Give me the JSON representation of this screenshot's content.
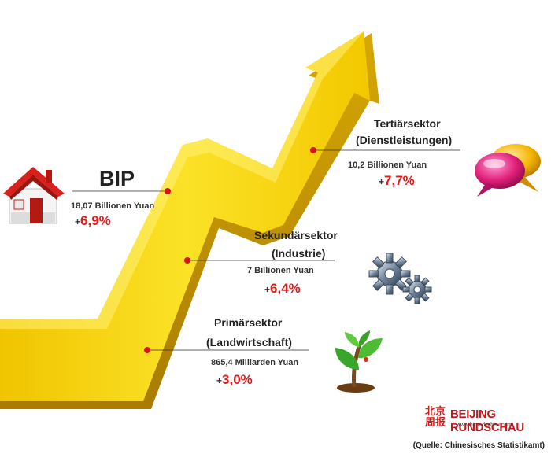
{
  "chart_data": {
    "type": "infographic-arrow",
    "items": [
      {
        "key": "bip",
        "title": "BIP",
        "amount": "18,07 Billionen Yuan",
        "growth_sign": "+",
        "growth_pct": "6,9%",
        "growth_value": 6.9
      },
      {
        "key": "tertiary",
        "title_line1": "Tertiärsektor",
        "title_line2": "(Dienstleistungen)",
        "amount": "10,2 Billionen Yuan",
        "growth_sign": "+",
        "growth_pct": "7,7%",
        "growth_value": 7.7
      },
      {
        "key": "secondary",
        "title_line1": "Sekundärsektor",
        "title_line2": "(Industrie)",
        "amount": "7 Billionen Yuan",
        "growth_sign": "+",
        "growth_pct": "6,4%",
        "growth_value": 6.4
      },
      {
        "key": "primary",
        "title_line1": "Primärsektor",
        "title_line2": "(Landwirtschaft)",
        "amount": "865,4 Milliarden Yuan",
        "growth_sign": "+",
        "growth_pct": "3,0%",
        "growth_value": 3.0
      }
    ],
    "colors": {
      "arrow": "#f5d20a",
      "arrow_dark": "#c9a106",
      "arrow_light": "#fde95a",
      "growth": "#e41b1b",
      "leader_dot": "#d8141a"
    }
  },
  "brand": {
    "mark": "北京周报",
    "name": "BEIJING RUNDSCHAU",
    "url": "www.bjrundschau.com"
  },
  "source": "(Quelle: Chinesisches Statistikamt)",
  "icons": {
    "bip": "house-icon",
    "tertiary": "speech-bubble-icon",
    "secondary": "gear-icon",
    "primary": "sprout-icon"
  }
}
